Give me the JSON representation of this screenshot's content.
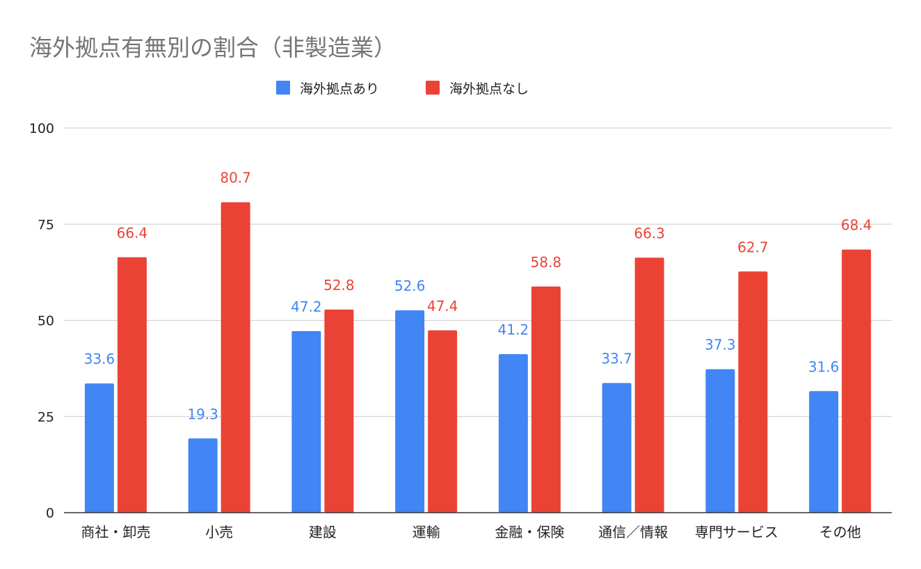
{
  "chart_data": {
    "type": "bar",
    "title": "海外拠点有無別の割合（非製造業）",
    "xlabel": "",
    "ylabel": "",
    "ylim": [
      0,
      100
    ],
    "yticks": [
      0,
      25,
      50,
      75,
      100
    ],
    "grid": true,
    "legend_position": "top-center",
    "categories": [
      "商社・卸売",
      "小売",
      "建設",
      "運輸",
      "金融・保険",
      "通信／情報",
      "専門サービス",
      "その他"
    ],
    "series": [
      {
        "name": "海外拠点あり",
        "color": "#4285f4",
        "values": [
          33.6,
          19.3,
          47.2,
          52.6,
          41.2,
          33.7,
          37.3,
          31.6
        ]
      },
      {
        "name": "海外拠点なし",
        "color": "#ea4335",
        "values": [
          66.4,
          80.7,
          52.8,
          47.4,
          58.8,
          66.3,
          62.7,
          68.4
        ]
      }
    ]
  }
}
